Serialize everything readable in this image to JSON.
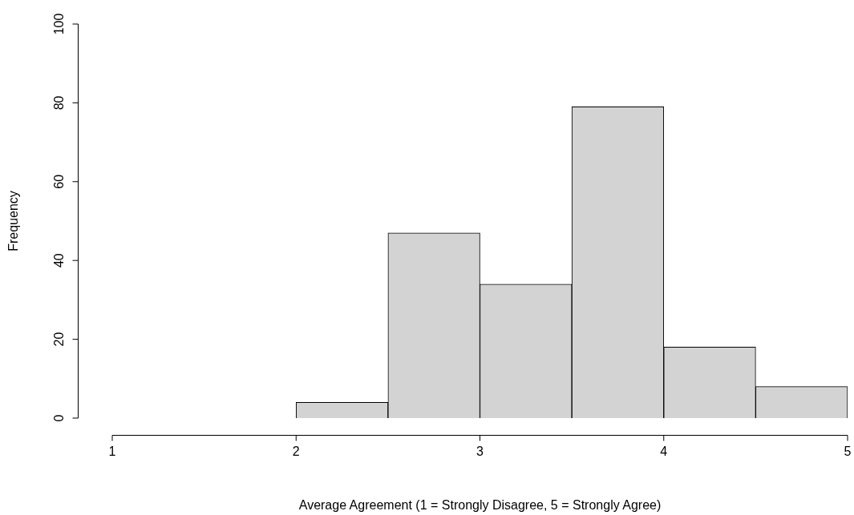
{
  "chart_data": {
    "type": "histogram",
    "xlabel": "Average Agreement (1 = Strongly Disagree, 5 = Strongly Agree)",
    "ylabel": "Frequency",
    "bins": [
      2,
      2.5,
      3,
      3.5,
      4,
      4.5,
      5
    ],
    "values": [
      4,
      47,
      34,
      79,
      18,
      8
    ],
    "color": "#d3d3d3",
    "xlim": [
      1,
      5
    ],
    "ylim": [
      0,
      100
    ],
    "xticks": [
      1,
      2,
      3,
      4,
      5
    ],
    "yticks": [
      0,
      20,
      40,
      60,
      80,
      100
    ]
  }
}
